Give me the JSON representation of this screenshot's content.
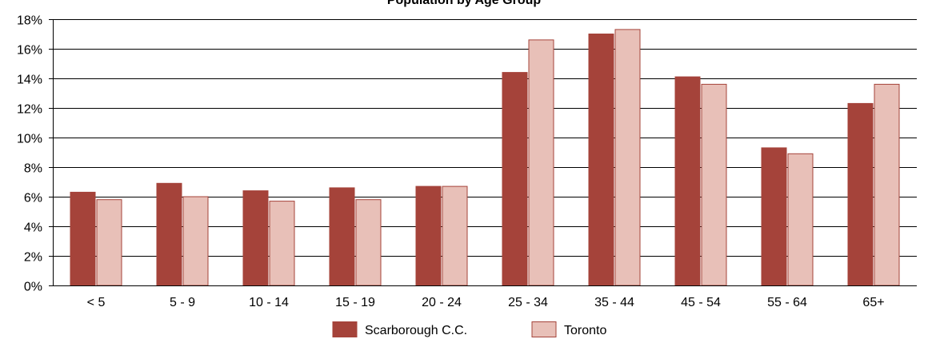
{
  "chart_data": {
    "type": "bar",
    "title": "Population by Age Group",
    "categories": [
      "< 5",
      "5 - 9",
      "10 - 14",
      "15 - 19",
      "20 - 24",
      "25 - 34",
      "35 - 44",
      "45 - 54",
      "55 - 64",
      "65+"
    ],
    "series": [
      {
        "name": "Scarborough C.C.",
        "color": "#a5433a",
        "values": [
          6.3,
          6.9,
          6.4,
          6.6,
          6.7,
          14.4,
          17.0,
          14.1,
          9.3,
          12.3
        ]
      },
      {
        "name": "Toronto",
        "color": "#e8c0b8",
        "values": [
          5.8,
          6.0,
          5.7,
          5.8,
          6.7,
          16.6,
          17.3,
          13.6,
          8.9,
          13.6
        ]
      }
    ],
    "ylim": [
      0,
      18
    ],
    "yticks": [
      "0%",
      "2%",
      "4%",
      "6%",
      "8%",
      "10%",
      "12%",
      "14%",
      "16%",
      "18%"
    ],
    "grid": true,
    "legend_position": "bottom-center"
  }
}
